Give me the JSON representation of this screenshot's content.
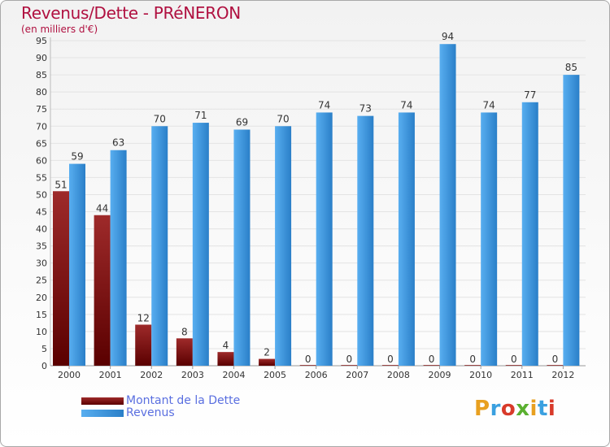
{
  "header": {
    "title": "Revenus/Dette - PRéNERON",
    "subtitle": "(en milliers d'€)"
  },
  "legend": {
    "debt_label": "Montant de la Dette",
    "revenue_label": "Revenus"
  },
  "brand": {
    "letters": [
      "P",
      "r",
      "o",
      "x",
      "i",
      "t",
      "i"
    ],
    "letter_colors": [
      "#e8a020",
      "#3aa0e0",
      "#d83a2a",
      "#5ab030",
      "#e8a020",
      "#3aa0e0",
      "#d83a2a"
    ]
  },
  "colors": {
    "debt_top": "#9e2a2a",
    "debt_bottom": "#5a0000",
    "revenue_light": "#58aef0",
    "revenue_dark": "#2a7fc8",
    "grid": "#e3e3e3",
    "axis_text": "#333333"
  },
  "chart_data": {
    "type": "bar",
    "title": "Revenus/Dette - PRéNERON",
    "ylabel": "(en milliers d'€)",
    "xlabel": "",
    "ylim": [
      0,
      95
    ],
    "yticks": [
      0,
      5,
      10,
      15,
      20,
      25,
      30,
      35,
      40,
      45,
      50,
      55,
      60,
      65,
      70,
      75,
      80,
      85,
      90,
      95
    ],
    "categories": [
      "2000",
      "2001",
      "2002",
      "2003",
      "2004",
      "2005",
      "2006",
      "2007",
      "2008",
      "2009",
      "2010",
      "2011",
      "2012"
    ],
    "series": [
      {
        "name": "Montant de la Dette",
        "values": [
          51,
          44,
          12,
          8,
          4,
          2,
          0,
          0,
          0,
          0,
          0,
          0,
          0
        ]
      },
      {
        "name": "Revenus",
        "values": [
          59,
          63,
          70,
          71,
          69,
          70,
          74,
          73,
          74,
          94,
          74,
          77,
          85
        ]
      }
    ],
    "legend_position": "bottom-left",
    "grid": true
  }
}
